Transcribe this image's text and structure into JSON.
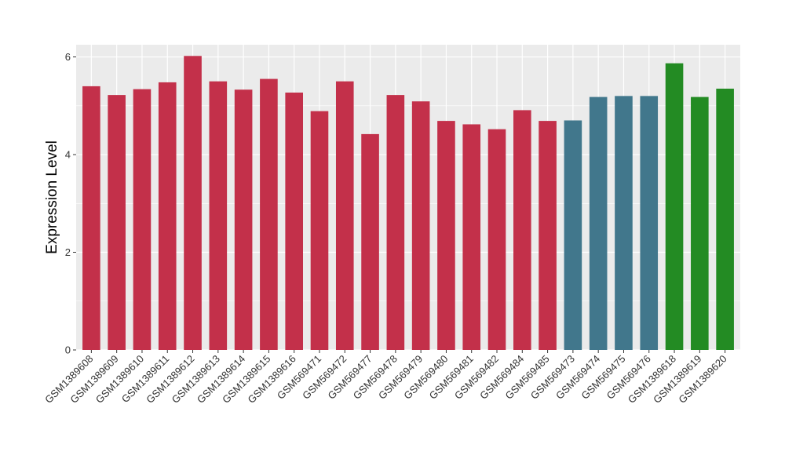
{
  "chart_data": {
    "type": "bar",
    "title": "",
    "xlabel": "",
    "ylabel": "Expression Level",
    "ylim": [
      0,
      6.25
    ],
    "yticks": [
      0,
      2,
      4,
      6
    ],
    "grid": true,
    "categories": [
      "GSM1389608",
      "GSM1389609",
      "GSM1389610",
      "GSM1389611",
      "GSM1389612",
      "GSM1389613",
      "GSM1389614",
      "GSM1389615",
      "GSM1389616",
      "GSM569471",
      "GSM569472",
      "GSM569477",
      "GSM569478",
      "GSM569479",
      "GSM569480",
      "GSM569481",
      "GSM569482",
      "GSM569484",
      "GSM569485",
      "GSM569473",
      "GSM569474",
      "GSM569475",
      "GSM569476",
      "GSM1389618",
      "GSM1389619",
      "GSM1389620"
    ],
    "values": [
      5.4,
      5.22,
      5.34,
      5.48,
      6.02,
      5.5,
      5.33,
      5.55,
      5.27,
      4.89,
      5.5,
      4.42,
      5.22,
      5.09,
      4.69,
      4.62,
      4.52,
      4.91,
      4.69,
      4.7,
      5.18,
      5.2,
      5.2,
      5.87,
      5.18,
      5.35
    ],
    "colors": [
      "#C3304A",
      "#C3304A",
      "#C3304A",
      "#C3304A",
      "#C3304A",
      "#C3304A",
      "#C3304A",
      "#C3304A",
      "#C3304A",
      "#C3304A",
      "#C3304A",
      "#C3304A",
      "#C3304A",
      "#C3304A",
      "#C3304A",
      "#C3304A",
      "#C3304A",
      "#C3304A",
      "#C3304A",
      "#41778C",
      "#41778C",
      "#41778C",
      "#41778C",
      "#238B23",
      "#238B23",
      "#238B23"
    ],
    "panel_background": "#EBEBEB",
    "grid_color": "#FFFFFF"
  }
}
